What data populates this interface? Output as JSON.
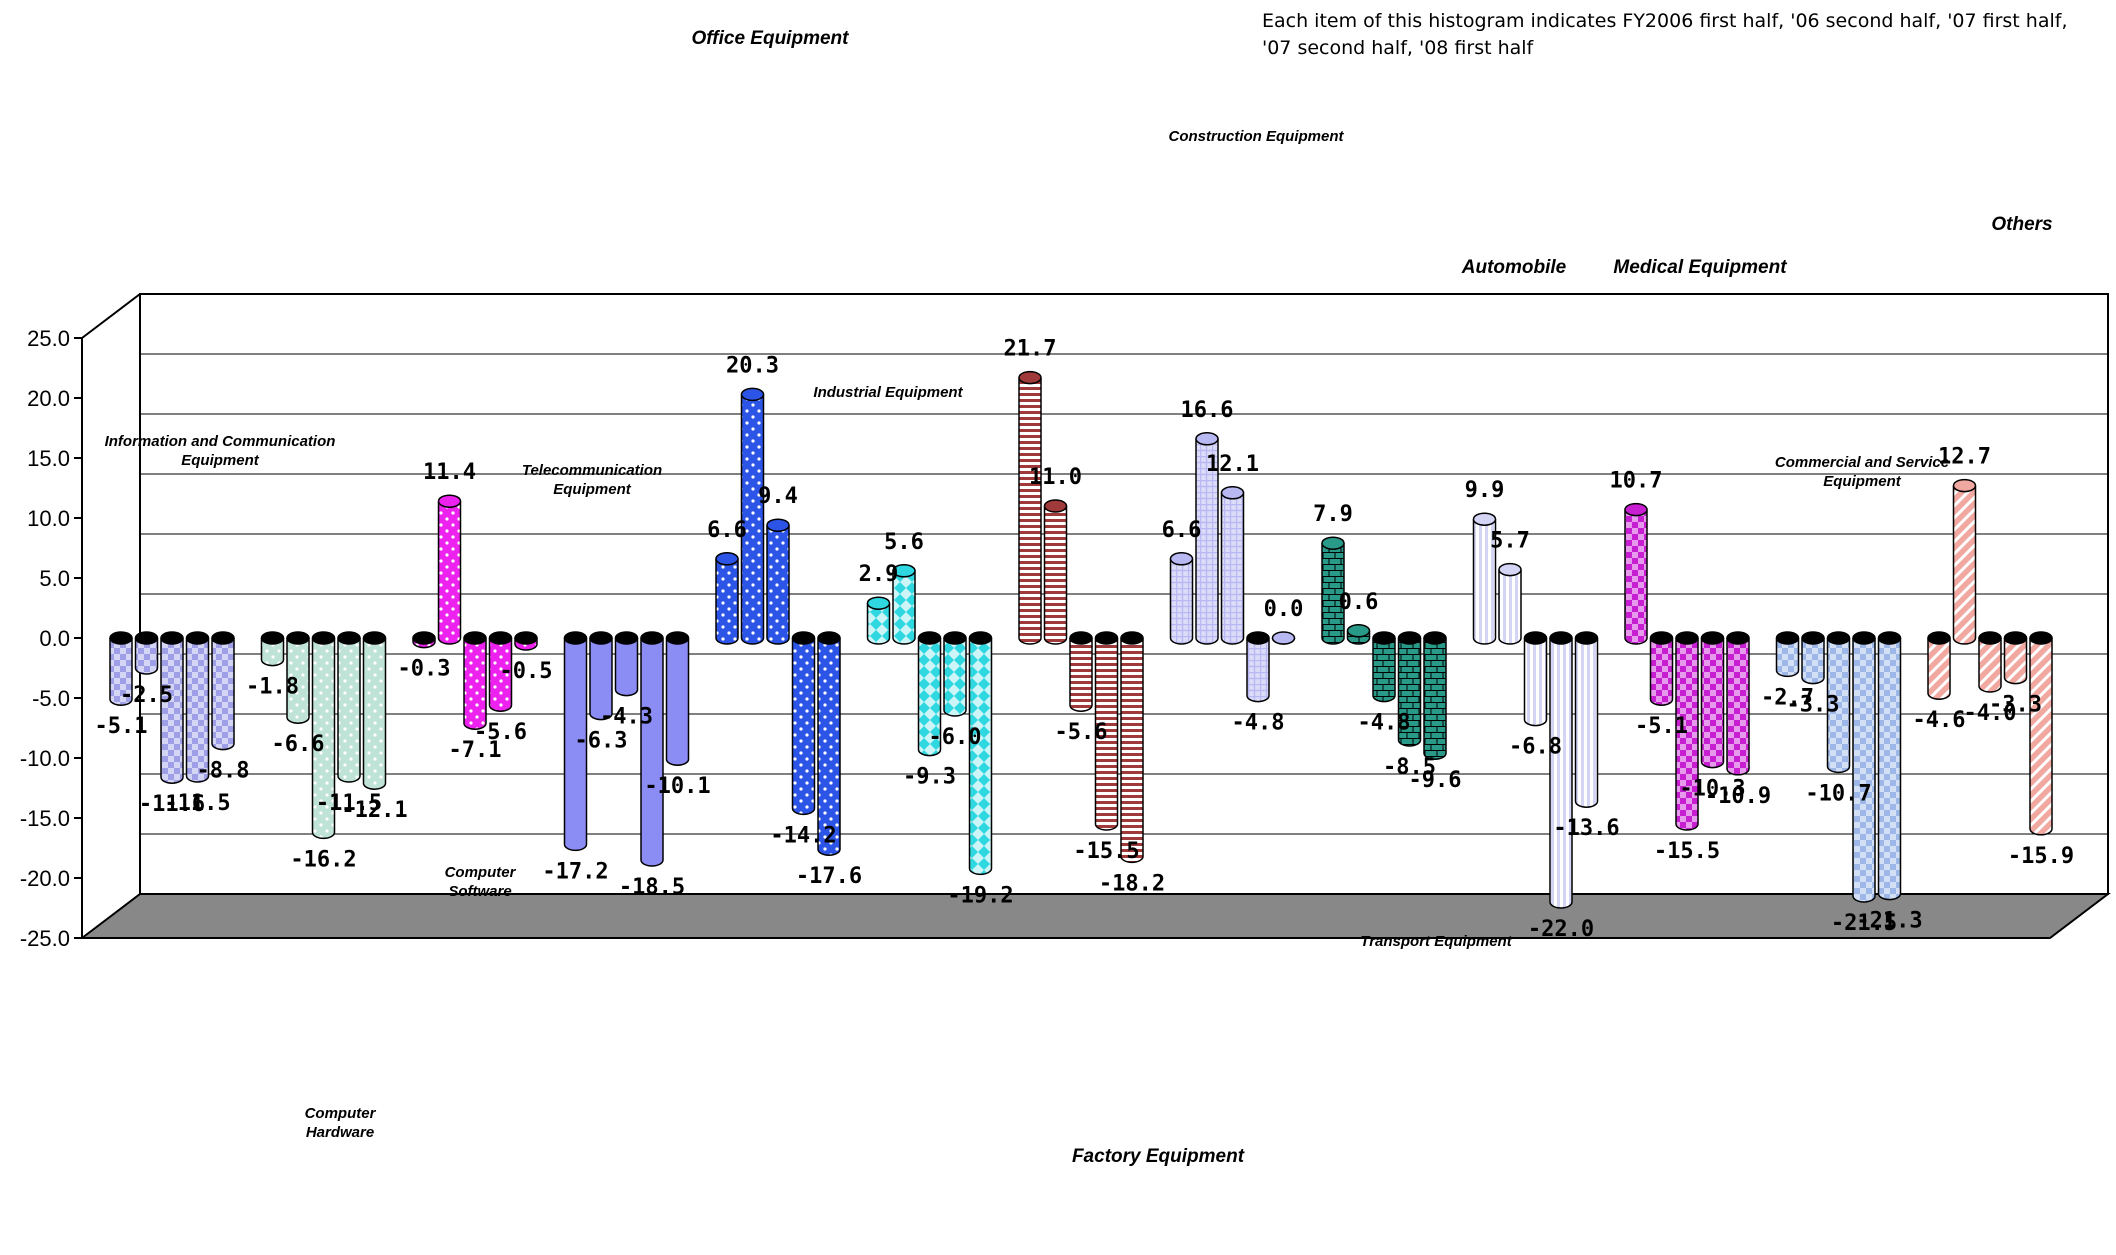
{
  "chart_data": {
    "type": "bar",
    "note": "Each item of this histogram indicates FY2006 first half, '06 second half, '07 first half, '07 second half, '08 first half",
    "periods": [
      "FY2006 first half",
      "'06 second half",
      "'07 first half",
      "'07 second half",
      "'08 first half"
    ],
    "ylim": [
      -25,
      25
    ],
    "yticks": [
      "25.0",
      "20.0",
      "15.0",
      "10.0",
      "5.0",
      "0.0",
      "-5.0",
      "-10.0",
      "-15.0",
      "-20.0",
      "-25.0"
    ],
    "grid": true,
    "categories": [
      {
        "name": "Information and Communication Equipment",
        "lines": [
          "Information and Communication",
          "Equipment"
        ],
        "color": "#9f9fe8",
        "pattern": "check",
        "values": [
          -5.1,
          -2.5,
          -11.6,
          -11.5,
          -8.8
        ]
      },
      {
        "name": "Computer Hardware",
        "lines": [
          "Computer",
          "Hardware"
        ],
        "color": "#bfe3d6",
        "pattern": "dots",
        "values": [
          -1.8,
          -6.6,
          -16.2,
          -11.5,
          -12.1
        ]
      },
      {
        "name": "Computer Software",
        "lines": [
          "Computer",
          "Software"
        ],
        "color": "#ee22ee",
        "pattern": "dots",
        "values": [
          -0.3,
          11.4,
          -7.1,
          -5.6,
          -0.5
        ]
      },
      {
        "name": "Telecommunication Equipment",
        "lines": [
          "Telecommunication",
          "Equipment"
        ],
        "color": "#8c8cf5",
        "pattern": "none",
        "values": [
          -17.2,
          -6.3,
          -4.3,
          -18.5,
          -10.1
        ]
      },
      {
        "name": "Office Equipment",
        "lines": [
          "Office Equipment"
        ],
        "color": "#2c55e8",
        "pattern": "dots",
        "values": [
          6.6,
          20.3,
          9.4,
          -14.2,
          -17.6
        ]
      },
      {
        "name": "Industrial Equipment",
        "lines": [
          "Industrial Equipment"
        ],
        "color": "#2fd8e0",
        "pattern": "diamond",
        "values": [
          2.9,
          5.6,
          -9.3,
          -6.0,
          -19.2
        ]
      },
      {
        "name": "Factory Equipment",
        "lines": [
          "Factory Equipment"
        ],
        "color": "#a03a3a",
        "pattern": "hstripe",
        "values": [
          21.7,
          11.0,
          -5.6,
          -15.5,
          -18.2
        ]
      },
      {
        "name": "Construction Equipment",
        "lines": [
          "Construction Equipment"
        ],
        "color": "#b8b8f2",
        "pattern": "grid",
        "values": [
          6.6,
          16.6,
          12.1,
          -4.8,
          0.0
        ]
      },
      {
        "name": "Transport Equipment",
        "lines": [
          "Transport Equipment"
        ],
        "color": "#2a9a88",
        "pattern": "brick",
        "values": [
          7.9,
          0.6,
          -4.8,
          -8.5,
          -9.6
        ]
      },
      {
        "name": "Automobile",
        "lines": [
          "Automobile"
        ],
        "color": "#d4d4f4",
        "pattern": "vstripe",
        "values": [
          9.9,
          5.7,
          -6.8,
          -22.0,
          -13.6
        ]
      },
      {
        "name": "Medical Equipment",
        "lines": [
          "Medical Equipment"
        ],
        "color": "#c81ed2",
        "pattern": "check",
        "values": [
          10.7,
          -5.1,
          -15.5,
          -10.3,
          -10.9
        ]
      },
      {
        "name": "Commercial and Service Equipment",
        "lines": [
          "Commercial and Service",
          "Equipment"
        ],
        "color": "#9db8e8",
        "pattern": "check",
        "values": [
          -2.7,
          -3.3,
          -10.7,
          -21.5,
          -21.3
        ]
      },
      {
        "name": "Others",
        "lines": [
          "Others"
        ],
        "color": "#f0a8a0",
        "pattern": "dstripe",
        "values": [
          -4.6,
          12.7,
          -4.0,
          -3.3,
          -15.9
        ]
      }
    ]
  }
}
